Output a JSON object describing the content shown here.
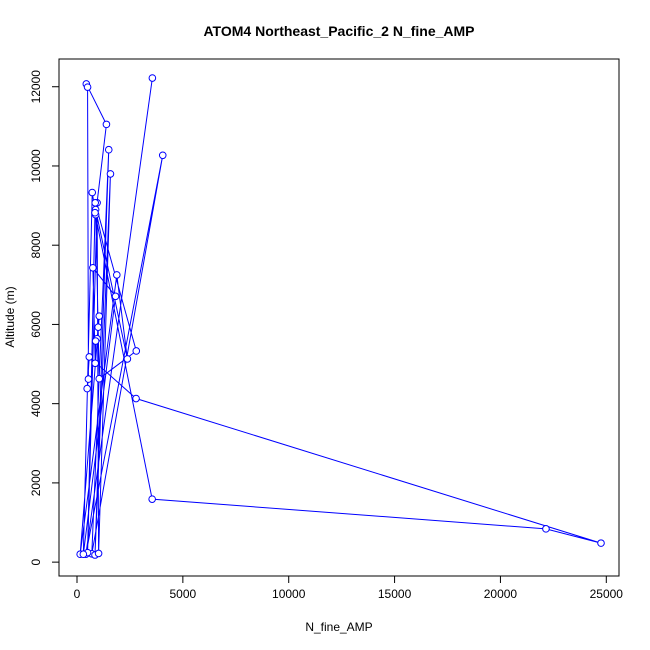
{
  "chart_data": {
    "type": "line",
    "title": "ATOM4 Northeast_Pacific_2 N_fine_AMP",
    "xlabel": "N_fine_AMP",
    "ylabel": "Altitude (m)",
    "xlim": [
      -850,
      25600
    ],
    "ylim": [
      -350,
      12700
    ],
    "x_ticks": [
      0,
      5000,
      10000,
      15000,
      20000,
      25000
    ],
    "y_ticks": [
      0,
      2000,
      4000,
      6000,
      8000,
      10000,
      12000
    ],
    "grid": false,
    "series": [
      {
        "color": "#0000ff",
        "marker": "open-circle",
        "points": [
          {
            "x": 3560,
            "y": 12220
          },
          {
            "x": 420,
            "y": 200
          },
          {
            "x": 4050,
            "y": 10270
          },
          {
            "x": 700,
            "y": 210
          },
          {
            "x": 1500,
            "y": 10410
          },
          {
            "x": 850,
            "y": 180
          },
          {
            "x": 1580,
            "y": 9800
          },
          {
            "x": 1020,
            "y": 220
          },
          {
            "x": 950,
            "y": 9070
          },
          {
            "x": 500,
            "y": 240
          },
          {
            "x": 860,
            "y": 9070
          },
          {
            "x": 2800,
            "y": 5330
          },
          {
            "x": 1050,
            "y": 4630
          },
          {
            "x": 880,
            "y": 8900
          },
          {
            "x": 2380,
            "y": 5130
          },
          {
            "x": 1880,
            "y": 7250
          },
          {
            "x": 150,
            "y": 200
          },
          {
            "x": 1050,
            "y": 6210
          },
          {
            "x": 1000,
            "y": 5930
          },
          {
            "x": 950,
            "y": 5640
          },
          {
            "x": 880,
            "y": 5580
          },
          {
            "x": 860,
            "y": 5020
          },
          {
            "x": 750,
            "y": 7430
          },
          {
            "x": 1820,
            "y": 6710
          },
          {
            "x": 300,
            "y": 200
          },
          {
            "x": 720,
            "y": 9330
          },
          {
            "x": 880,
            "y": 8770
          },
          {
            "x": 1390,
            "y": 11050
          },
          {
            "x": 440,
            "y": 12070
          },
          {
            "x": 500,
            "y": 11990
          },
          {
            "x": 540,
            "y": 4620
          },
          {
            "x": 480,
            "y": 4380
          },
          {
            "x": 580,
            "y": 5180
          },
          {
            "x": 2790,
            "y": 4130
          },
          {
            "x": 24750,
            "y": 480
          },
          {
            "x": 22150,
            "y": 840
          },
          {
            "x": 3550,
            "y": 1590
          },
          {
            "x": 850,
            "y": 8820
          }
        ]
      }
    ]
  }
}
